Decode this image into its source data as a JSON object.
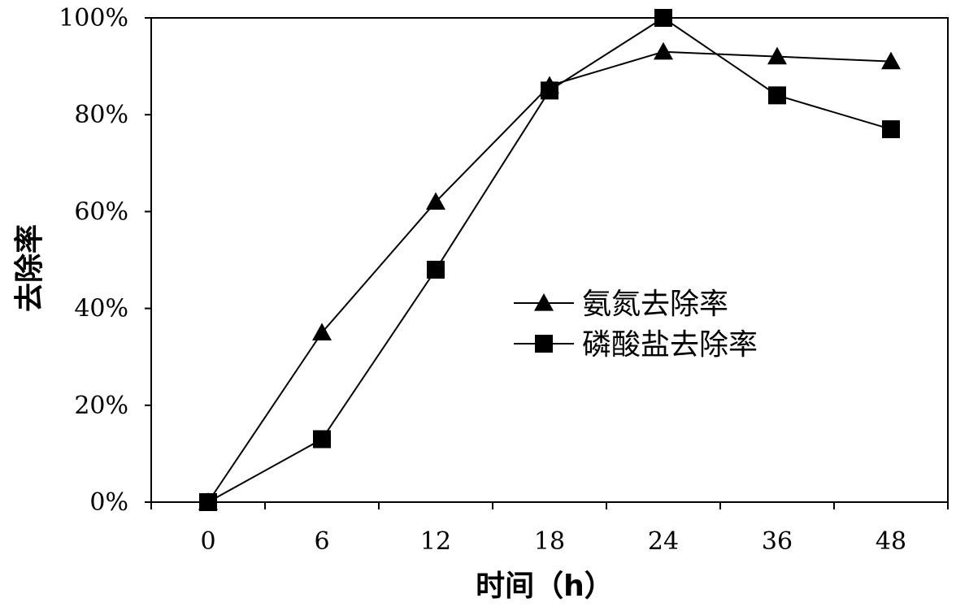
{
  "chart_data": {
    "type": "line",
    "categories": [
      "0",
      "6",
      "12",
      "18",
      "24",
      "36",
      "48"
    ],
    "xlabel": "时间（h）",
    "ylabel": "去除率",
    "ylim": [
      0,
      100
    ],
    "yticks": [
      "0%",
      "20%",
      "40%",
      "60%",
      "80%",
      "100%"
    ],
    "grid": false,
    "legend_position": "center-right",
    "series": [
      {
        "name": "氨氮去除率",
        "marker": "triangle",
        "values": [
          0,
          35,
          62,
          86,
          93,
          92,
          91
        ]
      },
      {
        "name": "磷酸盐去除率",
        "marker": "square",
        "values": [
          0,
          13,
          48,
          85,
          100,
          84,
          77
        ]
      }
    ]
  }
}
